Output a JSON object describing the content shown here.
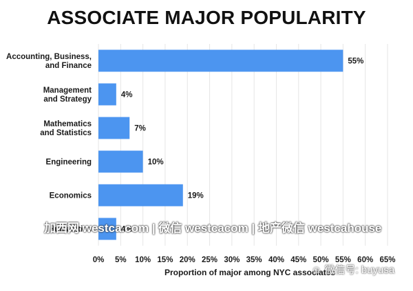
{
  "chart_data": {
    "type": "bar",
    "orientation": "horizontal",
    "title": "ASSOCIATE MAJOR POPULARITY",
    "categories": [
      [
        "Accounting, Business,",
        "and Finance"
      ],
      [
        "Management",
        "and Strategy"
      ],
      [
        "Mathematics",
        "and Statistics"
      ],
      [
        "Engineering"
      ],
      [
        "Economics"
      ],
      [
        "Humanities"
      ]
    ],
    "values": [
      55,
      4,
      7,
      10,
      19,
      4
    ],
    "value_labels": [
      "55%",
      "4%",
      "7%",
      "10%",
      "19%",
      "4%"
    ],
    "xlabel": "Proportion of major among NYC associates",
    "xlim": [
      0,
      65
    ],
    "xticks": [
      0,
      5,
      10,
      15,
      20,
      25,
      30,
      35,
      40,
      45,
      50,
      55,
      60,
      65
    ],
    "xtick_labels": [
      "0%",
      "5%",
      "10%",
      "15%",
      "20%",
      "25%",
      "30%",
      "35%",
      "40%",
      "45%",
      "50%",
      "55%",
      "60%",
      "65%"
    ],
    "grid": true,
    "bar_color": "#4c95f0"
  },
  "watermarks": {
    "line1": "加西网 westca.com | 微信 westcacom | 地产微信 westcahouse",
    "line2": "微信号: buyusa"
  }
}
